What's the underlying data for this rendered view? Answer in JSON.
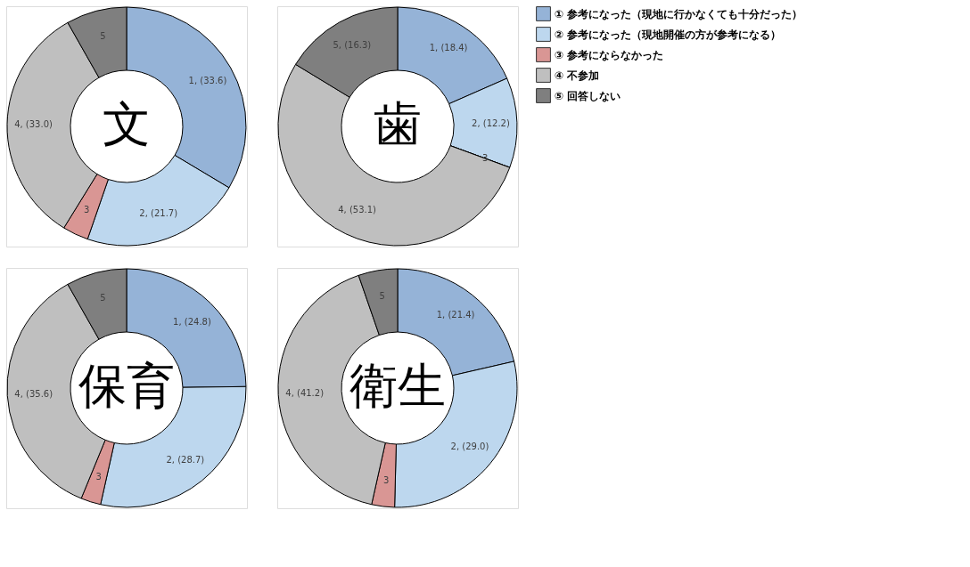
{
  "chart_data": [
    {
      "type": "donut",
      "title": "文",
      "legend": "top right",
      "categories": [
        "① 参考になった（現地に行かなくても十分だった）",
        "② 参考になった（現地開催の方が参考になる）",
        "③ 参考にならなかった",
        "④ 不参加",
        "⑤ 回答しない"
      ],
      "values": [
        33.6,
        21.7,
        3.5,
        33.0,
        8.2
      ],
      "colors": [
        "#95b3d7",
        "#bdd7ee",
        "#d99694",
        "#bfbfbf",
        "#7f7f7f"
      ],
      "value_labels": [
        "1, (33.6)",
        "2, (21.7)",
        null,
        "4, (33.0)",
        null
      ],
      "annotations": [
        {
          "text": "3",
          "x": "③ 参考にならなかった"
        },
        {
          "text": "5",
          "x": "⑤ 回答しない"
        }
      ]
    },
    {
      "type": "donut",
      "title": "歯",
      "categories": [
        null,
        null,
        null,
        null,
        null
      ],
      "values": [
        18.4,
        12.2,
        0,
        53.1,
        16.3
      ],
      "colors": [
        "#95b3d7",
        "#bdd7ee",
        "#d99694",
        "#bfbfbf",
        "#7f7f7f"
      ],
      "value_labels": [
        "1, (18.4)",
        "2, (12.2)",
        null,
        "4, (53.1)",
        "5, (16.3)"
      ],
      "annotations": [
        {
          "text": "3",
          "x": "③ 参考にならなかった"
        }
      ]
    },
    {
      "type": "donut",
      "title": "保育",
      "categories": [
        null,
        null,
        null,
        null,
        null
      ],
      "values": [
        24.8,
        28.7,
        2.7,
        35.6,
        8.2
      ],
      "colors": [
        "#95b3d7",
        "#bdd7ee",
        "#d99694",
        "#bfbfbf",
        "#7f7f7f"
      ],
      "value_labels": [
        "1, (24.8)",
        "2, (28.7)",
        null,
        "4, (35.6)",
        null
      ],
      "annotations": [
        {
          "text": "3",
          "x": "③ 参考にならなかった"
        },
        {
          "text": "5",
          "x": "⑤ 回答しない"
        }
      ]
    },
    {
      "type": "donut",
      "title": "衛生",
      "categories": [
        null,
        null,
        null,
        null,
        null
      ],
      "values": [
        21.4,
        29.0,
        3.1,
        41.2,
        5.3
      ],
      "colors": [
        "#95b3d7",
        "#bdd7ee",
        "#d99694",
        "#bfbfbf",
        "#7f7f7f"
      ],
      "value_labels": [
        "1, (21.4)",
        "2, (29.0)",
        null,
        "4, (41.2)",
        null
      ],
      "annotations": [
        {
          "text": "3",
          "x": "③ 参考にならなかった"
        },
        {
          "text": "5",
          "x": "⑤ 回答しない"
        }
      ]
    }
  ]
}
